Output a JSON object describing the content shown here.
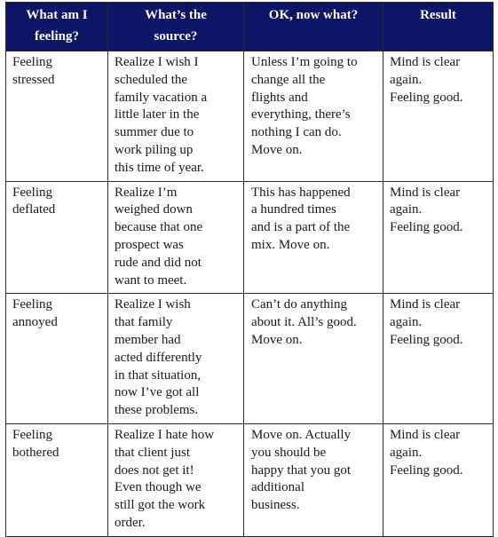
{
  "table": {
    "headers": [
      "What am I\nfeeling?",
      "What’s the\nsource?",
      "OK, now what?",
      "Result"
    ],
    "rows": [
      [
        "Feeling\nstressed",
        "Realize I wish I\nscheduled the\nfamily vacation a\nlittle later in the\nsummer due to\nwork piling up\nthis time of year.",
        "Unless I’m going to\nchange all the\nflights and\neverything, there’s\nnothing I can do.\nMove on.",
        "Mind is clear\nagain.\nFeeling good."
      ],
      [
        "Feeling\ndeflated",
        "Realize I’m\nweighed down\nbecause that one\nprospect was\nrude and did not\nwant to meet.",
        "This has happened\na hundred times\nand is a part of the\nmix.  Move on.",
        "Mind is clear\nagain.\nFeeling good."
      ],
      [
        "Feeling\nannoyed",
        "Realize I wish\nthat family\nmember had\nacted differently\nin that situation,\nnow I’ve got all\nthese problems.",
        "Can’t do anything\nabout it.  All’s good.\nMove on.",
        "Mind is clear\nagain.\nFeeling good."
      ],
      [
        "Feeling\nbothered",
        "Realize I hate how\nthat client just\ndoes not get it!\nEven though we\nstill got the work\norder.",
        "Move on.  Actually\nyou should be\nhappy that you got\nadditional\nbusiness.",
        "Mind is clear\nagain.\nFeeling good."
      ]
    ]
  }
}
